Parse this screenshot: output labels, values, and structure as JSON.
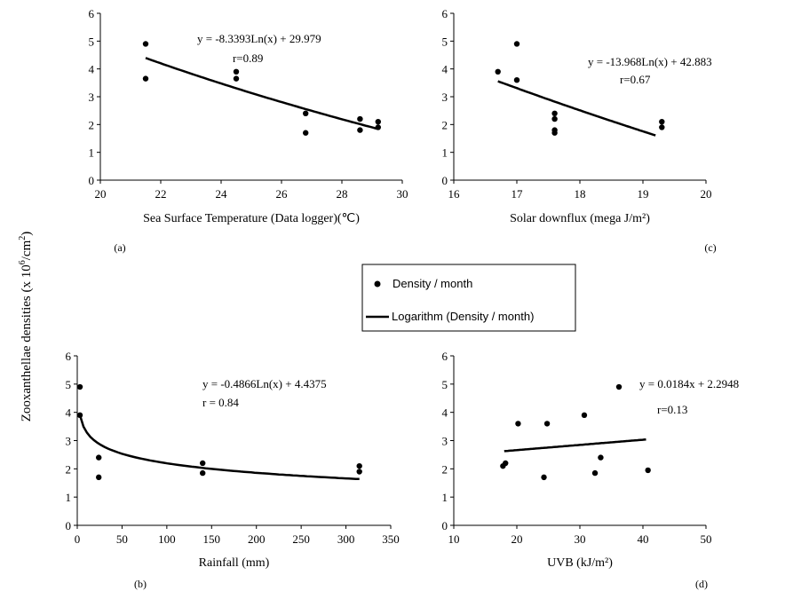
{
  "figure": {
    "ylabel": "Zooxanthellae  densities (x 10",
    "ylabel_sup": "6",
    "ylabel_tail": "/cm",
    "ylabel_sup2": "2",
    "ylabel_close": ")"
  },
  "legend": {
    "marker_label": "Density / month",
    "line_label": "Logarithm (Density / month)"
  },
  "chart_data": [
    {
      "id": "a",
      "type": "scatter",
      "panel_label": "(a)",
      "xlabel": "Sea Surface Temperature (Data logger)(℃)",
      "xlim": [
        20,
        30
      ],
      "xticks": [
        20,
        22,
        24,
        26,
        28,
        30
      ],
      "ylim": [
        0,
        6
      ],
      "yticks": [
        0,
        1,
        2,
        3,
        4,
        5,
        6
      ],
      "points": [
        [
          21.5,
          4.9
        ],
        [
          21.5,
          3.65
        ],
        [
          24.5,
          3.9
        ],
        [
          24.5,
          3.65
        ],
        [
          26.8,
          2.4
        ],
        [
          26.8,
          1.7
        ],
        [
          28.6,
          2.2
        ],
        [
          28.6,
          1.8
        ],
        [
          29.2,
          2.1
        ],
        [
          29.2,
          1.9
        ]
      ],
      "trendline": {
        "kind": "log",
        "a": -8.3393,
        "b": 29.979,
        "x_range": [
          21.5,
          29.2
        ]
      },
      "equation": "y = -8.3393Ln(x) + 29.979",
      "r_label": "r=0.89"
    },
    {
      "id": "c",
      "type": "scatter",
      "panel_label": "(c)",
      "xlabel": "Solar downflux (mega J/m²)",
      "xlim": [
        16,
        20
      ],
      "xticks": [
        16,
        17,
        18,
        19,
        20
      ],
      "ylim": [
        0,
        6
      ],
      "yticks": [
        0,
        1,
        2,
        3,
        4,
        5,
        6
      ],
      "points": [
        [
          16.7,
          3.9
        ],
        [
          17.0,
          4.9
        ],
        [
          17.0,
          3.6
        ],
        [
          17.6,
          2.4
        ],
        [
          17.6,
          2.2
        ],
        [
          17.6,
          1.8
        ],
        [
          17.6,
          1.7
        ],
        [
          19.3,
          2.1
        ],
        [
          19.3,
          1.9
        ]
      ],
      "trendline": {
        "kind": "log",
        "a": -13.968,
        "b": 42.883,
        "x_range": [
          16.7,
          19.2
        ]
      },
      "equation": "y = -13.968Ln(x) + 42.883",
      "r_label": "r=0.67"
    },
    {
      "id": "b",
      "type": "scatter",
      "panel_label": "(b)",
      "xlabel": "Rainfall (mm)",
      "xlim": [
        0,
        350
      ],
      "xticks": [
        0,
        50,
        100,
        150,
        200,
        250,
        300,
        350
      ],
      "ylim": [
        0,
        6
      ],
      "yticks": [
        0,
        1,
        2,
        3,
        4,
        5,
        6
      ],
      "points": [
        [
          3,
          4.9
        ],
        [
          3,
          3.9
        ],
        [
          24,
          2.4
        ],
        [
          24,
          1.7
        ],
        [
          140,
          2.2
        ],
        [
          140,
          1.85
        ],
        [
          315,
          2.1
        ],
        [
          315,
          1.9
        ]
      ],
      "trendline": {
        "kind": "log",
        "a": -0.4866,
        "b": 4.4375,
        "x_range": [
          3,
          315
        ]
      },
      "equation": "y = -0.4866Ln(x) + 4.4375",
      "r_label": "r = 0.84"
    },
    {
      "id": "d",
      "type": "scatter",
      "panel_label": "(d)",
      "xlabel": "UVB (kJ/m²)",
      "xlim": [
        10,
        50
      ],
      "xticks": [
        10,
        20,
        30,
        40,
        50
      ],
      "ylim": [
        0,
        6
      ],
      "yticks": [
        0,
        1,
        2,
        3,
        4,
        5,
        6
      ],
      "points": [
        [
          17.8,
          2.1
        ],
        [
          18.2,
          2.2
        ],
        [
          20.2,
          3.6
        ],
        [
          24.3,
          1.7
        ],
        [
          24.8,
          3.6
        ],
        [
          30.7,
          3.9
        ],
        [
          32.4,
          1.85
        ],
        [
          33.3,
          2.4
        ],
        [
          36.2,
          4.9
        ],
        [
          40.8,
          1.95
        ]
      ],
      "trendline": {
        "kind": "linear",
        "a": 0.0184,
        "b": 2.2948,
        "x_range": [
          18,
          40.5
        ]
      },
      "equation": "y = 0.0184x + 2.2948",
      "r_label": "r=0.13"
    }
  ]
}
